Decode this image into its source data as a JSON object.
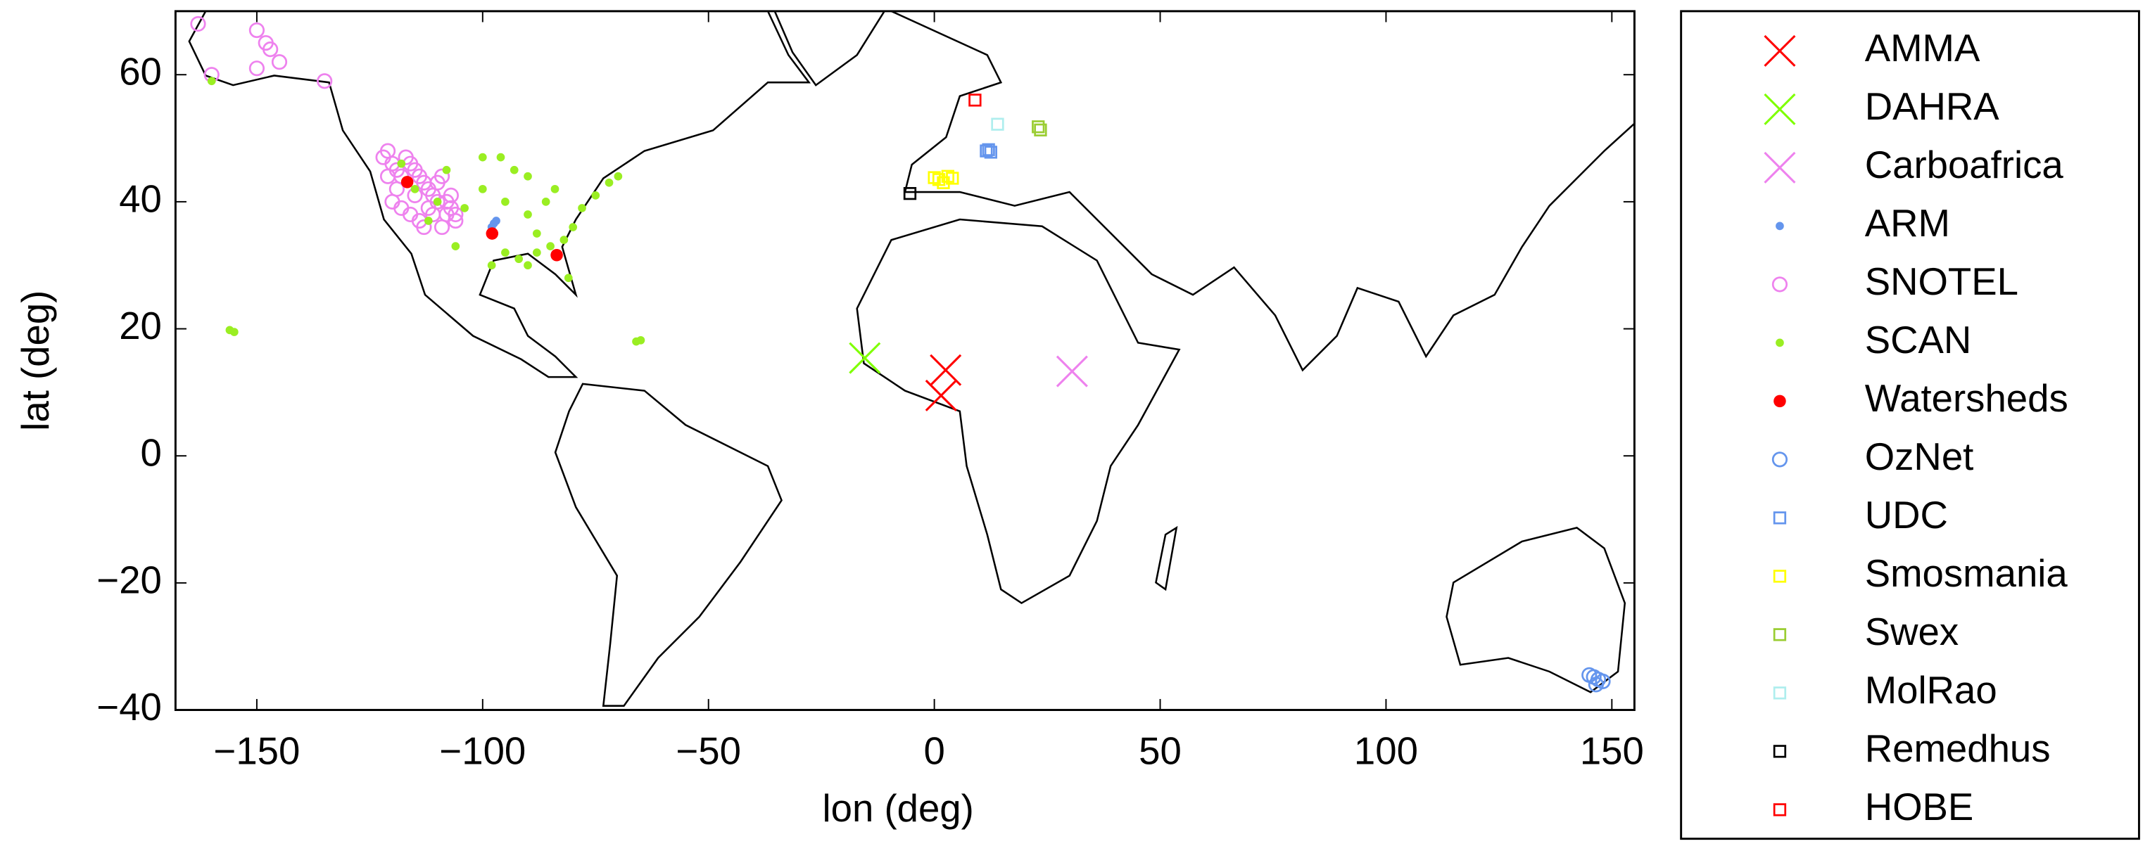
{
  "chart_data": {
    "type": "scatter",
    "x_label": "lon (deg)",
    "y_label": "lat (deg)",
    "xlim": [
      -168,
      155
    ],
    "ylim": [
      -40,
      70
    ],
    "xticks": [
      {
        "value": -150,
        "label": "−150"
      },
      {
        "value": -100,
        "label": "−100"
      },
      {
        "value": -50,
        "label": "−50"
      },
      0,
      50,
      100,
      150
    ],
    "yticks": [
      {
        "value": -40,
        "label": "−40"
      },
      {
        "value": -20,
        "label": "−20"
      },
      0,
      20,
      40,
      60
    ],
    "series": [
      {
        "name": "AMMA",
        "color": "#ff0000",
        "marker": "x",
        "x": [
          2.5,
          1.5
        ],
        "values": [
          13.5,
          9.5
        ]
      },
      {
        "name": "DAHRA",
        "color": "#7fff00",
        "marker": "x",
        "x": [
          -15.4
        ],
        "values": [
          15.4
        ]
      },
      {
        "name": "Carboafrica",
        "color": "#ee82ee",
        "marker": "x",
        "x": [
          30.5
        ],
        "values": [
          13.3
        ]
      },
      {
        "name": "ARM",
        "color": "#6495ed",
        "marker": "dot",
        "x": [
          -97.5,
          -97,
          -98
        ],
        "values": [
          36.6,
          37,
          36
        ]
      },
      {
        "name": "SNOTEL",
        "color": "#ee82ee",
        "marker": "circle",
        "x": [
          -122,
          -121,
          -120,
          -119,
          -118,
          -117,
          -116,
          -115,
          -114,
          -113,
          -112,
          -111,
          -110,
          -109,
          -108,
          -107,
          -106,
          -120,
          -118,
          -116,
          -114,
          -112,
          -110,
          -108,
          -106,
          -119,
          -115,
          -111,
          -107,
          -121,
          -113,
          -109,
          -150,
          -148,
          -147,
          -145,
          -150,
          -135,
          -163,
          -160
        ],
        "values": [
          47,
          48,
          46,
          45,
          44,
          47,
          46,
          45,
          44,
          43,
          42,
          41,
          43,
          44,
          40,
          39,
          38,
          40,
          39,
          38,
          37,
          39,
          40,
          38,
          37,
          42,
          41,
          38,
          41,
          44,
          36,
          36,
          67,
          65,
          64,
          62,
          61,
          59,
          68,
          60
        ]
      },
      {
        "name": "SCAN",
        "color": "#9aee22",
        "marker": "dot",
        "x": [
          -100,
          -95,
          -90,
          -88,
          -85,
          -82,
          -80,
          -78,
          -75,
          -72,
          -70,
          -90,
          -93,
          -86,
          -84,
          -98,
          -95,
          -92,
          -88,
          -104,
          -110,
          -112,
          -115,
          -118,
          -106,
          -156,
          -155,
          -66,
          -65,
          -160,
          -100,
          -96,
          -108,
          -90,
          -81
        ],
        "values": [
          42,
          40,
          38,
          35,
          33,
          34,
          36,
          39,
          41,
          43,
          44,
          44,
          45,
          40,
          42,
          30,
          32,
          31,
          32,
          39,
          40,
          37,
          42,
          46,
          33,
          19.8,
          19.5,
          18,
          18.2,
          59,
          47,
          47,
          45,
          30,
          28
        ]
      },
      {
        "name": "Watersheds",
        "color": "#ff0000",
        "marker": "dot-big",
        "x": [
          -116.7,
          -97.9,
          -83.6
        ],
        "values": [
          43.1,
          35,
          31.6
        ]
      },
      {
        "name": "OzNet",
        "color": "#6495ed",
        "marker": "circle",
        "x": [
          146,
          147,
          145,
          148,
          146.5
        ],
        "values": [
          -34.8,
          -35.2,
          -34.5,
          -35.5,
          -36
        ]
      },
      {
        "name": "UDC",
        "color": "#6495ed",
        "marker": "square",
        "x": [
          11.5,
          12,
          12.5
        ],
        "values": [
          48,
          48.2,
          47.8
        ]
      },
      {
        "name": "Smosmania",
        "color": "#ffff00",
        "marker": "square",
        "x": [
          1,
          2,
          3,
          0,
          4
        ],
        "values": [
          43.5,
          43,
          44,
          43.8,
          43.7
        ]
      },
      {
        "name": "Swex",
        "color": "#9acd32",
        "marker": "square",
        "x": [
          23,
          23.5
        ],
        "values": [
          51.8,
          51.3
        ]
      },
      {
        "name": "MolRao",
        "color": "#afeeee",
        "marker": "square",
        "x": [
          14
        ],
        "values": [
          52.2
        ]
      },
      {
        "name": "Remedhus",
        "color": "#000000",
        "marker": "square",
        "x": [
          -5.4
        ],
        "values": [
          41.3
        ]
      },
      {
        "name": "HOBE",
        "color": "#ff0000",
        "marker": "square",
        "x": [
          9
        ],
        "values": [
          56
        ]
      }
    ]
  }
}
